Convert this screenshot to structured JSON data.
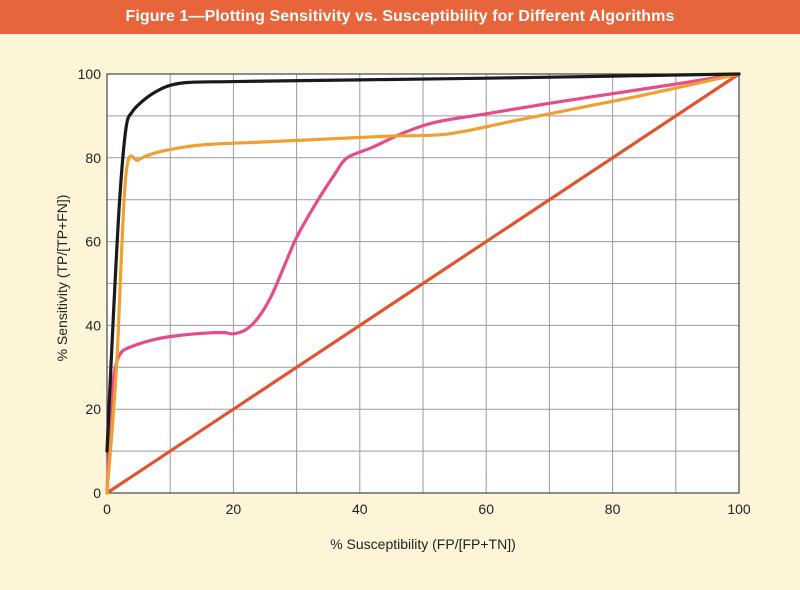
{
  "header": {
    "title": "Figure 1—Plotting Sensitivity vs. Susceptibility for Different Algorithms"
  },
  "colors": {
    "banner": "#e8643a",
    "background": "#fdf5d8",
    "plot_bg": "#ffffff",
    "grid": "#9a9a9a"
  },
  "chart_data": {
    "type": "line",
    "title": "Figure 1—Plotting Sensitivity vs. Susceptibility for Different Algorithms",
    "xlabel": "% Susceptibility (FP/[FP+TN])",
    "ylabel": "% Sensitivity (TP/[TP+FN])",
    "xlim": [
      0,
      100
    ],
    "ylim": [
      0,
      100
    ],
    "x_ticks": [
      "0",
      "20",
      "40",
      "60",
      "80",
      "100"
    ],
    "y_ticks": [
      "0",
      "20",
      "40",
      "60",
      "80",
      "100"
    ],
    "grid": true,
    "legend": "none",
    "series": [
      {
        "color": "#e05530",
        "points": [
          [
            0,
            0
          ],
          [
            100,
            100
          ]
        ]
      },
      {
        "color": "#e54c8a",
        "points": [
          [
            0,
            0
          ],
          [
            0.5,
            15
          ],
          [
            1,
            27
          ],
          [
            2,
            33
          ],
          [
            4,
            35
          ],
          [
            8,
            36.8
          ],
          [
            12,
            37.7
          ],
          [
            16,
            38.2
          ],
          [
            18.5,
            38.3
          ],
          [
            20,
            38
          ],
          [
            22,
            39
          ],
          [
            24,
            42
          ],
          [
            26,
            47
          ],
          [
            28,
            54
          ],
          [
            30,
            61
          ],
          [
            33,
            69
          ],
          [
            36,
            76
          ],
          [
            38,
            80
          ],
          [
            42,
            82.5
          ],
          [
            47,
            86
          ],
          [
            52,
            88.5
          ],
          [
            60,
            90.5
          ],
          [
            70,
            93
          ],
          [
            80,
            95.3
          ],
          [
            90,
            97.6
          ],
          [
            100,
            100
          ]
        ]
      },
      {
        "color": "#f0a030",
        "points": [
          [
            0,
            0
          ],
          [
            1.5,
            30
          ],
          [
            3,
            76
          ],
          [
            5,
            79.5
          ],
          [
            8,
            81.3
          ],
          [
            12,
            82.5
          ],
          [
            16,
            83.2
          ],
          [
            25,
            83.8
          ],
          [
            35,
            84.5
          ],
          [
            45,
            85.2
          ],
          [
            54,
            85.7
          ],
          [
            65,
            89
          ],
          [
            75,
            92
          ],
          [
            85,
            95
          ],
          [
            100,
            100
          ]
        ]
      },
      {
        "color": "#1a1a1a",
        "points": [
          [
            0,
            10
          ],
          [
            1,
            42
          ],
          [
            2,
            70
          ],
          [
            3,
            87
          ],
          [
            4,
            91
          ],
          [
            6,
            94
          ],
          [
            8,
            96
          ],
          [
            10,
            97.3
          ],
          [
            13,
            98
          ],
          [
            20,
            98.2
          ],
          [
            40,
            98.6
          ],
          [
            60,
            99
          ],
          [
            80,
            99.5
          ],
          [
            100,
            100
          ]
        ]
      }
    ]
  }
}
